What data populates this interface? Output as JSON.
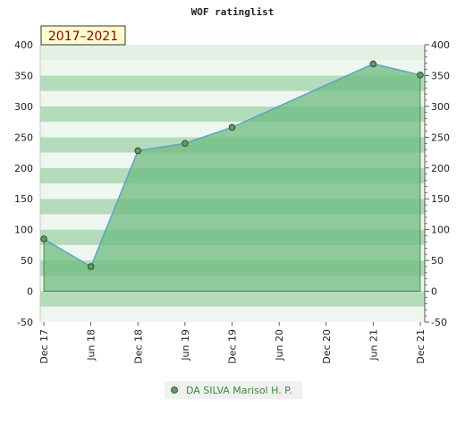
{
  "chart_data": {
    "type": "area",
    "title": "WOF ratinglist",
    "badge": "2017–2021",
    "xlabel": "",
    "ylabel": "",
    "x_ticks": [
      "Dec 17",
      "Jun 18",
      "Dec 18",
      "Jun 19",
      "Dec 19",
      "Jun 20",
      "Dec 20",
      "Jun 21",
      "Dec 21"
    ],
    "ylim": [
      -50,
      400
    ],
    "y_ticks": [
      -50,
      0,
      50,
      100,
      150,
      200,
      250,
      300,
      350,
      400
    ],
    "series": [
      {
        "name": "DA SILVA Marisol H. P.",
        "points": [
          {
            "x": "Dec 17",
            "y": 85
          },
          {
            "x": "Jun 18",
            "y": 40
          },
          {
            "x": "Dec 18",
            "y": 228
          },
          {
            "x": "Jun 19",
            "y": 240
          },
          {
            "x": "Dec 19",
            "y": 266
          },
          {
            "x": "Jun 21",
            "y": 369
          },
          {
            "x": "Dec 21",
            "y": 351
          }
        ]
      }
    ],
    "colors": {
      "line": "#5b9bd5",
      "fill": "#6dbb7f",
      "marker": "#5aa05a",
      "band_light": "#eef7ef",
      "band_dark": "#b4dcbb",
      "badge_bg": "#ffffcc"
    },
    "grid": true,
    "legend_position": "bottom-center"
  }
}
